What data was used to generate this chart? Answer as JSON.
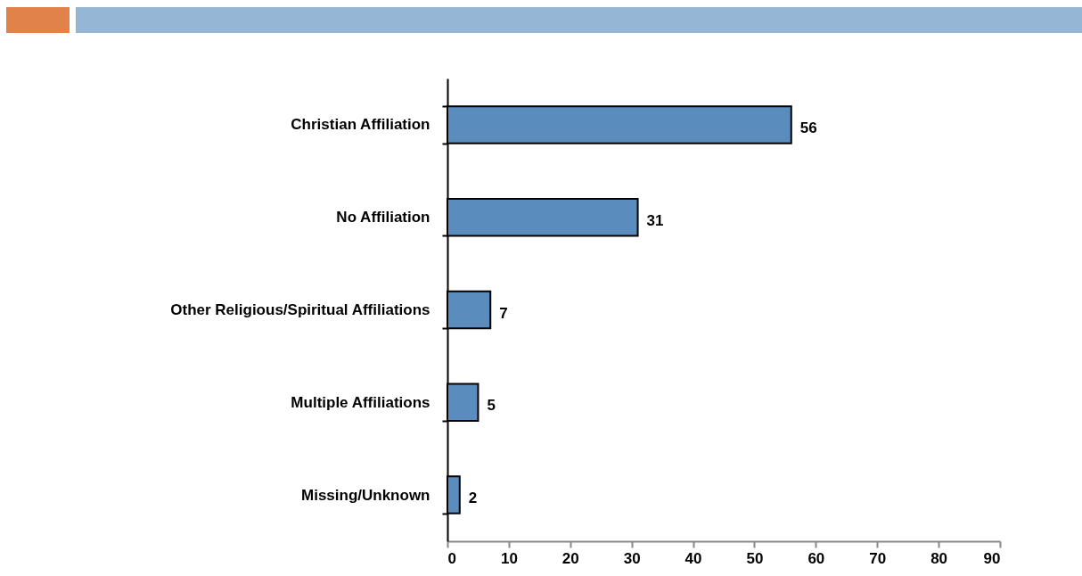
{
  "chart_data": {
    "type": "bar",
    "orientation": "horizontal",
    "categories": [
      "Christian Affiliation",
      "No Affiliation",
      "Other Religious/Spiritual Affiliations",
      "Multiple Affiliations",
      "Missing/Unknown"
    ],
    "values": [
      56,
      31,
      7,
      5,
      2
    ],
    "color": "#5a8cbe",
    "xlim": [
      0,
      90
    ],
    "xticks": [
      0,
      10,
      20,
      30,
      40,
      50,
      60,
      70,
      80,
      90
    ],
    "data_labels": true
  }
}
